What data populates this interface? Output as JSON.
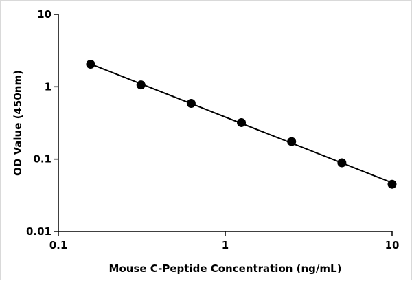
{
  "chart_data": {
    "type": "scatter",
    "title": "",
    "xlabel": "Mouse C-Peptide Concentration (ng/mL)",
    "ylabel": "OD Value (450nm)",
    "x_scale": "log",
    "y_scale": "log",
    "xlim": [
      0.1,
      10
    ],
    "ylim": [
      0.01,
      10
    ],
    "x_ticks": [
      {
        "value": 0.1,
        "label": "0.1"
      },
      {
        "value": 1,
        "label": "1"
      },
      {
        "value": 10,
        "label": "10"
      }
    ],
    "y_ticks": [
      {
        "value": 10,
        "label": "10"
      },
      {
        "value": 1,
        "label": "1"
      },
      {
        "value": 0.1,
        "label": "0.1"
      },
      {
        "value": 0.01,
        "label": "0.01"
      }
    ],
    "grid": false,
    "legend": "none",
    "series": [
      {
        "x": [
          0.156,
          0.3125,
          0.625,
          1.25,
          2.5,
          5,
          10
        ],
        "y": [
          2.05,
          1.06,
          0.59,
          0.32,
          0.175,
          0.089,
          0.045
        ],
        "marker": "circle",
        "marker_color": "#000000",
        "line": "power trendline",
        "line_color": "#000000"
      }
    ]
  }
}
